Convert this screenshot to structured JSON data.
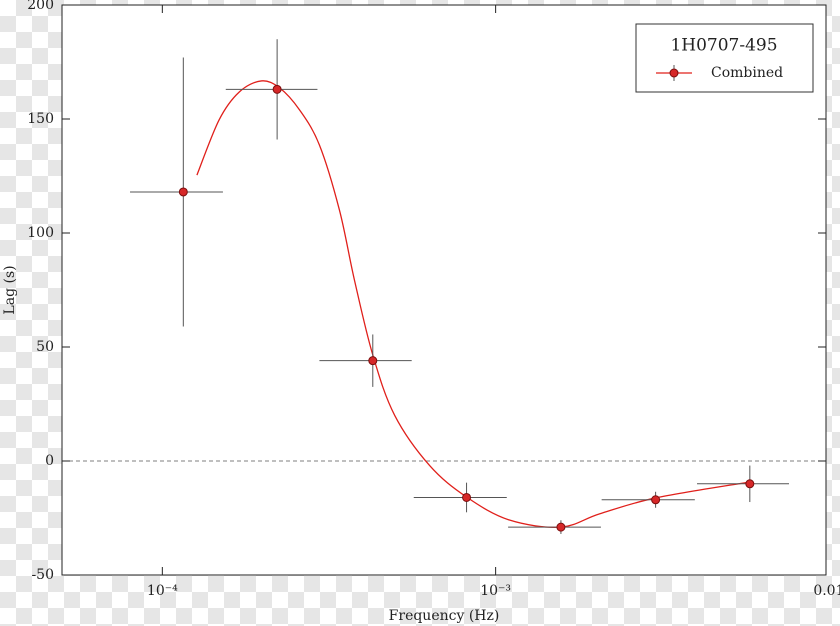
{
  "chart_data": {
    "type": "errorbar",
    "x_label": "Frequency (Hz)",
    "y_label": "Lag (s)",
    "x_log": true,
    "xlim": [
      5e-05,
      0.0098
    ],
    "ylim": [
      -50,
      200
    ],
    "xticks": [
      {
        "value": 0.0001,
        "label": "10⁻⁴"
      },
      {
        "value": 0.001,
        "label": "10⁻³"
      },
      {
        "value": 0.01,
        "label": "0.01"
      }
    ],
    "yticks": [
      -50,
      0,
      50,
      100,
      150,
      200
    ],
    "reference_line": 0,
    "legend_title": "1H0707-495",
    "legend_position": "upper right",
    "series": [
      {
        "name": "Combined",
        "color": "#d62728",
        "x": [
          0.0001156,
          0.000221,
          0.000428,
          0.000818,
          0.00157,
          0.00302,
          0.00579
        ],
        "x_min": [
          8e-05,
          0.000155,
          0.000296,
          0.000568,
          0.00109,
          0.00208,
          0.00402
        ],
        "x_max": [
          0.000152,
          0.000292,
          0.00056,
          0.00108,
          0.00207,
          0.00396,
          0.00759
        ],
        "values": [
          118,
          163,
          44,
          -16,
          -29,
          -17,
          -10
        ],
        "yerr": [
          59,
          22,
          11.5,
          6.5,
          3,
          3.5,
          8
        ]
      }
    ],
    "model": {
      "color": "#e0201b",
      "x": [
        0.000127,
        0.000148,
        0.00017,
        0.000198,
        0.000225,
        0.000258,
        0.000296,
        0.00034,
        0.000377,
        0.000428,
        0.000498,
        0.000634,
        0.000818,
        0.0011,
        0.00157,
        0.00205,
        0.00302,
        0.00579
      ],
      "values": [
        125.4,
        149.6,
        161.8,
        166.7,
        163.6,
        154,
        138.6,
        110,
        79.4,
        46.5,
        20,
        -2,
        -15.8,
        -25.9,
        -29,
        -23.2,
        -16.2,
        -9.2
      ]
    }
  }
}
